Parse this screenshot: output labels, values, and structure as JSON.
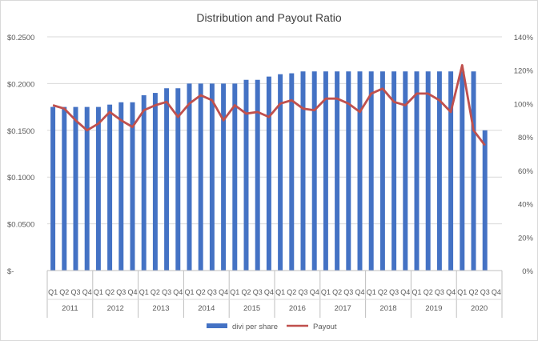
{
  "chart_data": {
    "type": "bar",
    "title": "Distribution and Payout Ratio",
    "xlabel": "",
    "ylabel": "",
    "y_left": {
      "lim": [
        0,
        0.25
      ],
      "ticks": [
        0,
        0.05,
        0.1,
        0.15,
        0.2,
        0.25
      ],
      "tick_labels": [
        "$-",
        "$0.0500",
        "$0.1000",
        "$0.1500",
        "$0.2000",
        "$0.2500"
      ]
    },
    "y_right": {
      "lim": [
        0,
        140
      ],
      "ticks": [
        0,
        20,
        40,
        60,
        80,
        100,
        120,
        140
      ],
      "tick_labels": [
        "0%",
        "20%",
        "40%",
        "60%",
        "80%",
        "100%",
        "120%",
        "140%"
      ]
    },
    "years": [
      "2011",
      "2012",
      "2013",
      "2014",
      "2015",
      "2016",
      "2017",
      "2018",
      "2019",
      "2020"
    ],
    "quarters": [
      "Q1",
      "Q2",
      "Q3",
      "Q4"
    ],
    "series": [
      {
        "name": "divi per share",
        "type": "bar",
        "axis": "left",
        "color": "#4472c4",
        "values": [
          0.175,
          0.175,
          0.175,
          0.175,
          0.175,
          0.1775,
          0.18,
          0.18,
          0.1875,
          0.19,
          0.195,
          0.195,
          0.2,
          0.2,
          0.2,
          0.2,
          0.2,
          0.204,
          0.204,
          0.2075,
          0.21,
          0.211,
          0.213,
          0.213,
          0.213,
          0.213,
          0.213,
          0.213,
          0.213,
          0.213,
          0.213,
          0.213,
          0.213,
          0.213,
          0.213,
          0.213,
          0.213,
          0.213,
          0.15,
          null
        ]
      },
      {
        "name": "Payout",
        "type": "line",
        "axis": "right",
        "color": "#c0504d",
        "values": [
          99,
          97,
          90,
          84,
          88,
          95,
          90,
          86,
          96,
          99,
          101,
          92,
          100,
          105,
          102,
          90,
          99,
          94,
          95,
          92,
          100,
          102,
          97,
          96,
          103,
          103,
          100,
          95,
          106,
          109,
          101,
          99,
          106,
          106,
          102,
          95,
          123,
          84,
          75,
          null
        ]
      }
    ],
    "grid": true,
    "legend_position": "bottom"
  }
}
